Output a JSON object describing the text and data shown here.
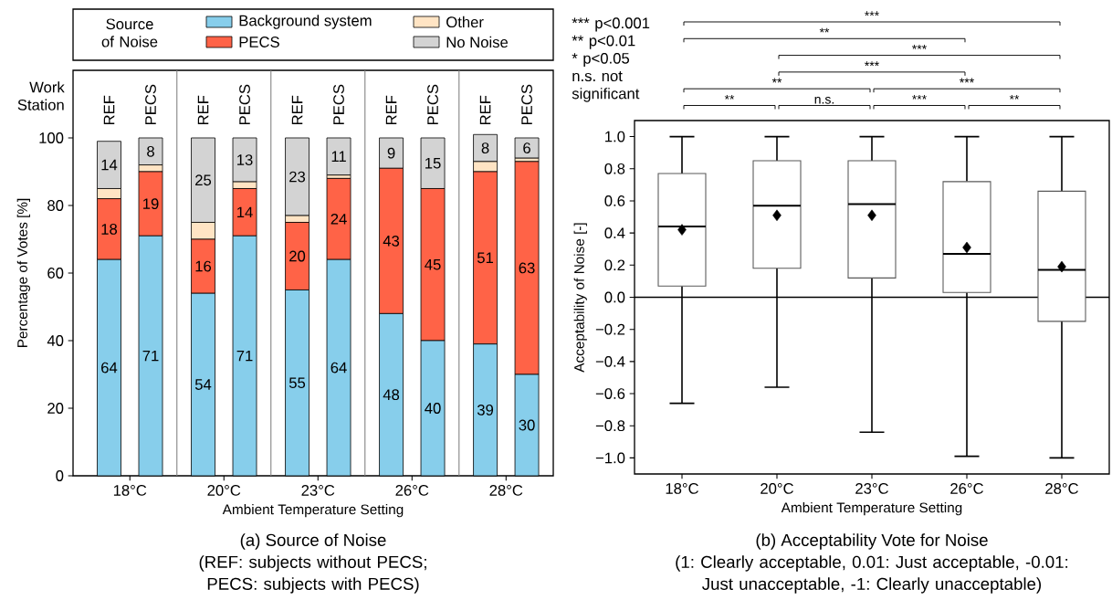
{
  "chart_data": [
    {
      "type": "bar",
      "stacked": true,
      "title": "(a) Source of Noise",
      "subtitle": "(REF: subjects without PECS; PECS: subjects with PECS)",
      "xlabel": "Ambient Temperature Setting",
      "ylabel": "Percentage of Votes [%]",
      "legend_title": "Source of Noise",
      "legend": "top",
      "categories": [
        "REF",
        "PECS",
        "REF",
        "PECS",
        "REF",
        "PECS",
        "REF",
        "PECS",
        "REF",
        "PECS"
      ],
      "series": [
        {
          "name": "Background system",
          "color": "#87ceeb",
          "values": [
            64,
            71,
            54,
            71,
            55,
            64,
            48,
            40,
            39,
            30
          ],
          "value_labels": [
            "64",
            "71",
            "54",
            "71",
            "55",
            "64",
            "48",
            "40",
            "39",
            "30"
          ]
        },
        {
          "name": "PECS",
          "color": "#ff6347",
          "values": [
            18,
            19,
            16,
            14,
            20,
            24,
            43,
            45,
            51,
            63
          ],
          "value_labels": [
            "18",
            "19",
            "16",
            "14",
            "20",
            "24",
            "43",
            "45",
            "51",
            "63"
          ]
        },
        {
          "name": "Other",
          "color": "#ffe4c4",
          "values": [
            3,
            2,
            5,
            2,
            2,
            1,
            0,
            0,
            3,
            1
          ]
        },
        {
          "name": "No Noise",
          "color": "#d3d3d3",
          "values": [
            14,
            8,
            25,
            13,
            23,
            11,
            9,
            15,
            8,
            6
          ],
          "value_labels": [
            "14",
            "8",
            "25",
            "13",
            "23",
            "11",
            "9",
            "15",
            "8",
            "6"
          ]
        }
      ],
      "ylim": [
        0,
        120
      ],
      "yticks": [
        0,
        20,
        40,
        60,
        80,
        100
      ],
      "annotations": [
        "Work Station",
        "18°C",
        "20°C",
        "23°C",
        "26°C",
        "28°C"
      ]
    },
    {
      "type": "box",
      "title": "(b) Acceptability Vote for Noise",
      "subtitle": "(1: Clearly acceptable, 0.01: Just acceptable, -0.01: Just unacceptable, -1: Clearly unacceptable)",
      "xlabel": "Ambient Temperature Setting",
      "ylabel": "Acceptability of Noise [-]",
      "categories": [
        "18°C",
        "20°C",
        "23°C",
        "26°C",
        "28°C"
      ],
      "boxes": [
        {
          "low": -0.66,
          "q1": 0.07,
          "median": 0.44,
          "q3": 0.77,
          "high": 1.0,
          "mean": 0.42
        },
        {
          "low": -0.56,
          "q1": 0.18,
          "median": 0.57,
          "q3": 0.85,
          "high": 1.0,
          "mean": 0.51
        },
        {
          "low": -0.84,
          "q1": 0.12,
          "median": 0.58,
          "q3": 0.85,
          "high": 1.0,
          "mean": 0.51
        },
        {
          "low": -0.99,
          "q1": 0.03,
          "median": 0.27,
          "q3": 0.72,
          "high": 1.0,
          "mean": 0.31
        },
        {
          "low": -1.0,
          "q1": -0.15,
          "median": 0.17,
          "q3": 0.66,
          "high": 1.0,
          "mean": 0.19
        }
      ],
      "marker": "diamond",
      "ylim": [
        -1.1,
        1.1
      ],
      "yticks": [
        {
          "value": -1.0,
          "label": "−1.0"
        },
        {
          "value": -0.8,
          "label": "−0.8"
        },
        {
          "value": -0.6,
          "label": "−0.6"
        },
        {
          "value": -0.4,
          "label": "−0.4"
        },
        {
          "value": -0.2,
          "label": "−0.2"
        },
        {
          "value": 0,
          "label": "0.0"
        },
        {
          "value": 0.2,
          "label": "0.2"
        },
        {
          "value": 0.4,
          "label": "0.4"
        },
        {
          "value": 0.6,
          "label": "0.6"
        },
        {
          "value": 0.8,
          "label": "0.8"
        },
        {
          "value": 1.0,
          "label": "1.0"
        }
      ],
      "ref_lines": [
        {
          "axis": "y",
          "value": 0
        }
      ],
      "annotations": [
        "*** p<0.001",
        "** p<0.01",
        "* p<0.05",
        "n.s. not significant",
        "***",
        "**",
        "***",
        "***",
        "**",
        "***",
        "**",
        "n.s.",
        "***",
        "**"
      ]
    }
  ]
}
